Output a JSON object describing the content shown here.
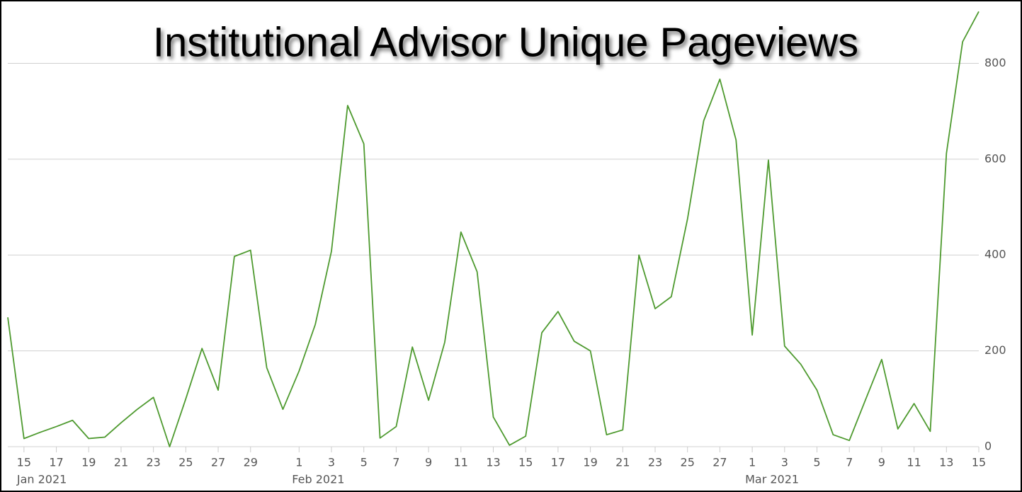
{
  "chart_data": {
    "type": "line",
    "title": "Institutional Advisor Unique Pageviews",
    "x": [
      "2021-01-14",
      "2021-01-15",
      "2021-01-16",
      "2021-01-17",
      "2021-01-18",
      "2021-01-19",
      "2021-01-20",
      "2021-01-21",
      "2021-01-22",
      "2021-01-23",
      "2021-01-24",
      "2021-01-25",
      "2021-01-26",
      "2021-01-27",
      "2021-01-28",
      "2021-01-29",
      "2021-01-30",
      "2021-01-31",
      "2021-02-01",
      "2021-02-02",
      "2021-02-03",
      "2021-02-04",
      "2021-02-05",
      "2021-02-06",
      "2021-02-07",
      "2021-02-08",
      "2021-02-09",
      "2021-02-10",
      "2021-02-11",
      "2021-02-12",
      "2021-02-13",
      "2021-02-14",
      "2021-02-15",
      "2021-02-16",
      "2021-02-17",
      "2021-02-18",
      "2021-02-19",
      "2021-02-20",
      "2021-02-21",
      "2021-02-22",
      "2021-02-23",
      "2021-02-24",
      "2021-02-25",
      "2021-02-26",
      "2021-02-27",
      "2021-02-28",
      "2021-03-01",
      "2021-03-02",
      "2021-03-03",
      "2021-03-04",
      "2021-03-05",
      "2021-03-06",
      "2021-03-07",
      "2021-03-08",
      "2021-03-09",
      "2021-03-10",
      "2021-03-11",
      "2021-03-12",
      "2021-03-13",
      "2021-03-14",
      "2021-03-15"
    ],
    "series": [
      {
        "color": "#4e9a2f",
        "values": [
          270,
          17,
          30,
          42,
          55,
          17,
          20,
          50,
          78,
          103,
          0,
          100,
          205,
          118,
          397,
          410,
          165,
          78,
          158,
          255,
          408,
          712,
          632,
          18,
          42,
          208,
          97,
          218,
          448,
          365,
          62,
          3,
          22,
          238,
          282,
          220,
          200,
          25,
          35,
          400,
          288,
          313,
          475,
          680,
          767,
          640,
          233,
          598,
          210,
          172,
          118,
          25,
          13,
          98,
          182,
          37,
          90,
          32,
          612,
          845,
          908
        ]
      }
    ],
    "xlim": [
      "2021-01-14",
      "2021-03-15"
    ],
    "xticks": [
      {
        "value": "2021-01-15",
        "label": "15"
      },
      {
        "value": "2021-01-17",
        "label": "17"
      },
      {
        "value": "2021-01-19",
        "label": "19"
      },
      {
        "value": "2021-01-21",
        "label": "21"
      },
      {
        "value": "2021-01-23",
        "label": "23"
      },
      {
        "value": "2021-01-25",
        "label": "25"
      },
      {
        "value": "2021-01-27",
        "label": "27"
      },
      {
        "value": "2021-01-29",
        "label": "29"
      },
      {
        "value": "2021-02-01",
        "label": "1"
      },
      {
        "value": "2021-02-03",
        "label": "3"
      },
      {
        "value": "2021-02-05",
        "label": "5"
      },
      {
        "value": "2021-02-07",
        "label": "7"
      },
      {
        "value": "2021-02-09",
        "label": "9"
      },
      {
        "value": "2021-02-11",
        "label": "11"
      },
      {
        "value": "2021-02-13",
        "label": "13"
      },
      {
        "value": "2021-02-15",
        "label": "15"
      },
      {
        "value": "2021-02-17",
        "label": "17"
      },
      {
        "value": "2021-02-19",
        "label": "19"
      },
      {
        "value": "2021-02-21",
        "label": "21"
      },
      {
        "value": "2021-02-23",
        "label": "23"
      },
      {
        "value": "2021-02-25",
        "label": "25"
      },
      {
        "value": "2021-02-27",
        "label": "27"
      },
      {
        "value": "2021-03-01",
        "label": "1"
      },
      {
        "value": "2021-03-03",
        "label": "3"
      },
      {
        "value": "2021-03-05",
        "label": "5"
      },
      {
        "value": "2021-03-07",
        "label": "7"
      },
      {
        "value": "2021-03-09",
        "label": "9"
      },
      {
        "value": "2021-03-11",
        "label": "11"
      },
      {
        "value": "2021-03-13",
        "label": "13"
      },
      {
        "value": "2021-03-15",
        "label": "15"
      }
    ],
    "x_month_labels": [
      {
        "value": "2021-01-15",
        "label": "Jan 2021"
      },
      {
        "value": "2021-02-01",
        "label": "Feb 2021"
      },
      {
        "value": "2021-03-01",
        "label": "Mar 2021"
      }
    ],
    "ylim": [
      0,
      910
    ],
    "yticks": [
      0,
      200,
      400,
      600,
      800
    ],
    "grid": true
  }
}
